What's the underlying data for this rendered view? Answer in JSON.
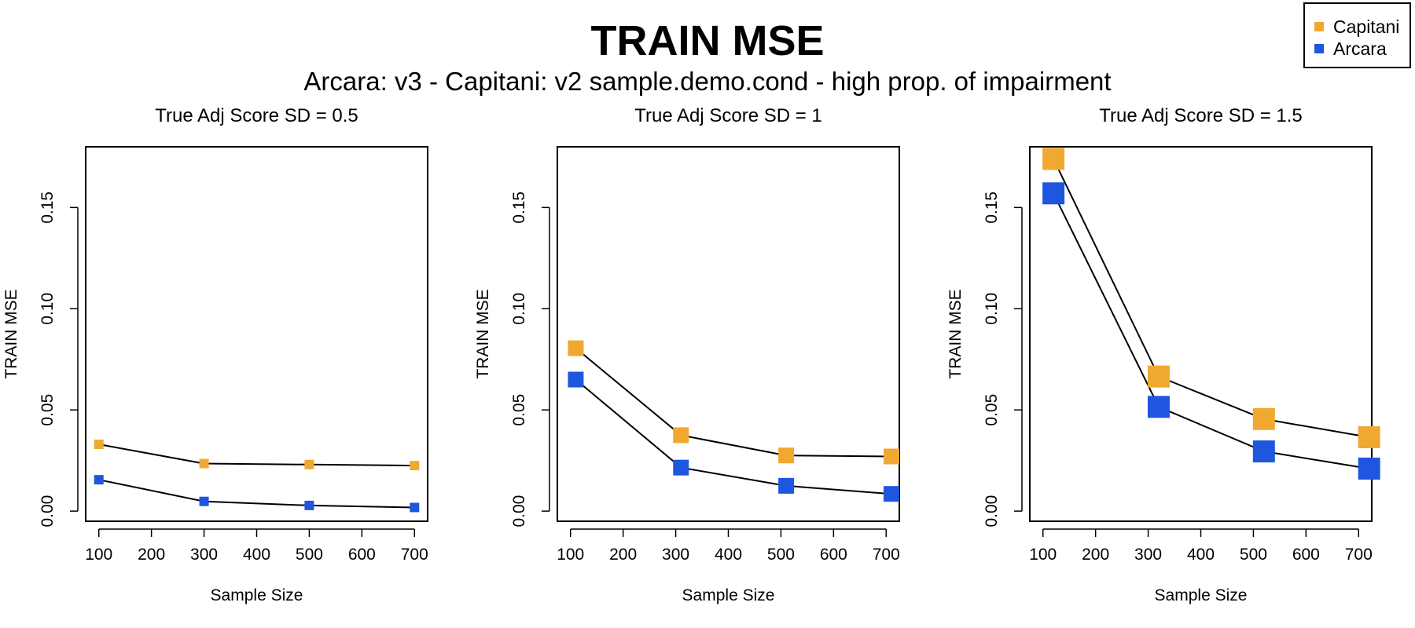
{
  "title": "TRAIN MSE",
  "subtitle": "Arcara: v3 - Capitani: v2 sample.demo.cond - high prop. of impairment",
  "legend": [
    {
      "name": "Capitani",
      "color": "#F0A830"
    },
    {
      "name": "Arcara",
      "color": "#1F56E0"
    }
  ],
  "colors": {
    "Capitani": "#F0A830",
    "Arcara": "#1F56E0",
    "line": "#000000"
  },
  "chart_data": [
    {
      "type": "line",
      "title": "True Adj Score SD = 0.5",
      "xlabel": "Sample Size",
      "ylabel": "TRAIN MSE",
      "xticks": [
        100,
        200,
        300,
        400,
        500,
        600,
        700
      ],
      "yticks": [
        "0.00",
        "0.05",
        "0.10",
        "0.15"
      ],
      "xlim": [
        75,
        725
      ],
      "ylim": [
        -0.005,
        0.18
      ],
      "series": [
        {
          "name": "Capitani",
          "x": [
            100,
            300,
            500,
            700
          ],
          "y": [
            0.033,
            0.0235,
            0.023,
            0.0225
          ]
        },
        {
          "name": "Arcara",
          "x": [
            100,
            300,
            500,
            700
          ],
          "y": [
            0.0155,
            0.0048,
            0.0028,
            0.0018
          ]
        }
      ]
    },
    {
      "type": "line",
      "title": "True Adj Score SD = 1",
      "xlabel": "Sample Size",
      "ylabel": "TRAIN MSE",
      "xticks": [
        100,
        200,
        300,
        400,
        500,
        600,
        700
      ],
      "yticks": [
        "0.00",
        "0.05",
        "0.10",
        "0.15"
      ],
      "xlim": [
        75,
        725
      ],
      "ylim": [
        -0.005,
        0.18
      ],
      "series": [
        {
          "name": "Capitani",
          "x": [
            110,
            310,
            510,
            710
          ],
          "y": [
            0.0805,
            0.0375,
            0.0275,
            0.027
          ]
        },
        {
          "name": "Arcara",
          "x": [
            110,
            310,
            510,
            710
          ],
          "y": [
            0.065,
            0.0215,
            0.0125,
            0.0085
          ]
        }
      ]
    },
    {
      "type": "line",
      "title": "True Adj Score SD = 1.5",
      "xlabel": "Sample Size",
      "ylabel": "TRAIN MSE",
      "xticks": [
        100,
        200,
        300,
        400,
        500,
        600,
        700
      ],
      "yticks": [
        "0.00",
        "0.05",
        "0.10",
        "0.15"
      ],
      "xlim": [
        75,
        725
      ],
      "ylim": [
        -0.005,
        0.18
      ],
      "series": [
        {
          "name": "Capitani",
          "x": [
            120,
            320,
            520,
            720
          ],
          "y": [
            0.174,
            0.0665,
            0.0455,
            0.0365
          ]
        },
        {
          "name": "Arcara",
          "x": [
            120,
            320,
            520,
            720
          ],
          "y": [
            0.157,
            0.0515,
            0.0295,
            0.021
          ]
        }
      ]
    }
  ]
}
